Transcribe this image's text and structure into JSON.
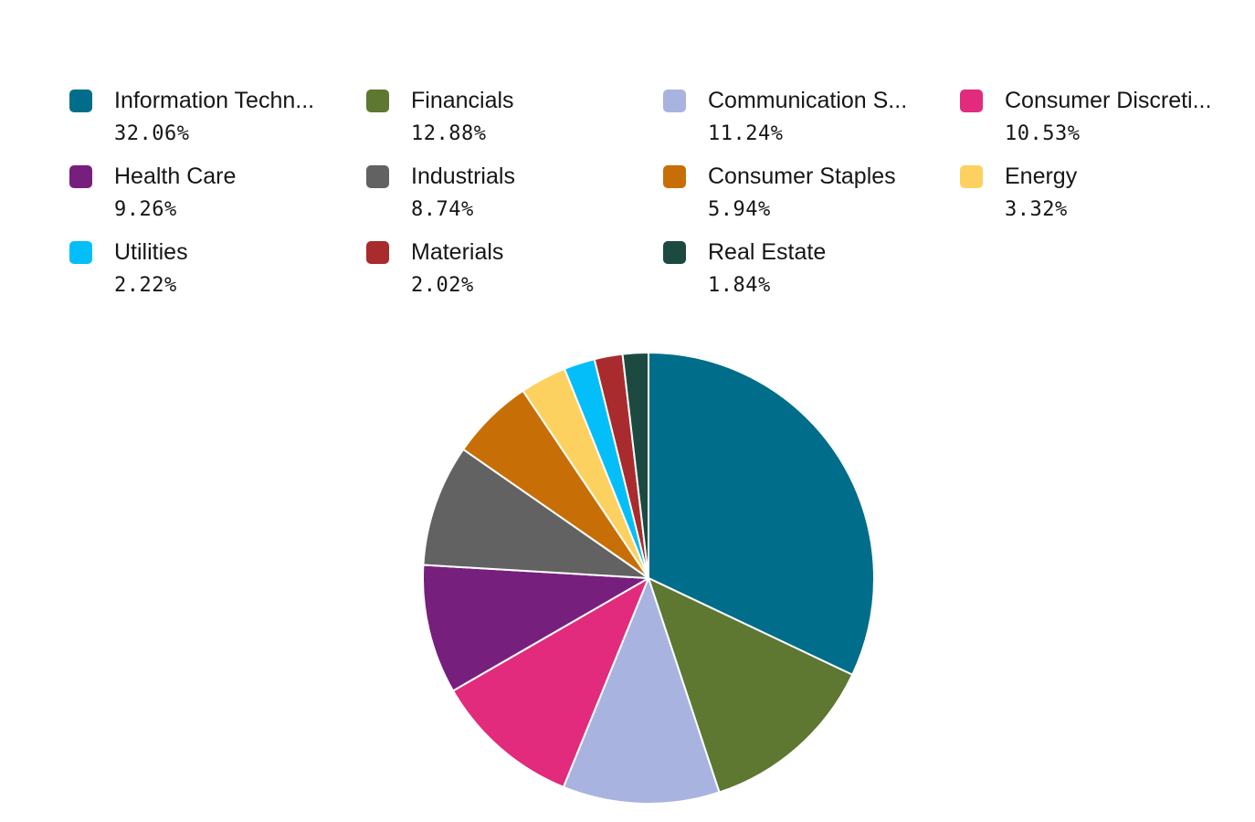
{
  "chart_data": {
    "type": "pie",
    "title": "",
    "legend_position": "top",
    "categories": [
      "Information Techn...",
      "Financials",
      "Communication S...",
      "Consumer Discreti...",
      "Health Care",
      "Industrials",
      "Consumer Staples",
      "Energy",
      "Utilities",
      "Materials",
      "Real Estate"
    ],
    "values": [
      32.06,
      12.88,
      11.24,
      10.53,
      9.26,
      8.74,
      5.94,
      3.32,
      2.22,
      2.02,
      1.84
    ],
    "value_labels": [
      "32.06%",
      "12.88%",
      "11.24%",
      "10.53%",
      "9.26%",
      "8.74%",
      "5.94%",
      "3.32%",
      "2.22%",
      "2.02%",
      "1.84%"
    ],
    "colors": [
      "#006d8a",
      "#5e7731",
      "#a8b4df",
      "#e22b7d",
      "#771f7d",
      "#626262",
      "#c76f06",
      "#fdd15f",
      "#04bef9",
      "#a92b2e",
      "#1c4a40"
    ]
  }
}
